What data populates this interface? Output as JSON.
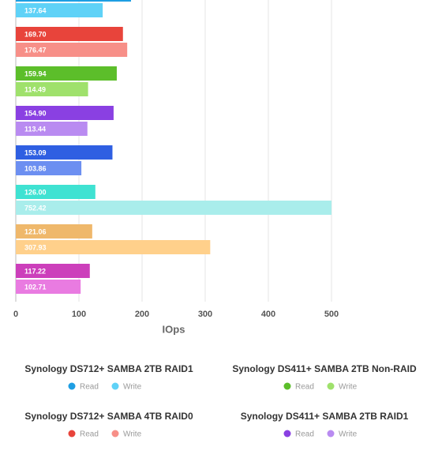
{
  "chart_data": {
    "type": "grouped-bar-horizontal",
    "categories": [
      "Read",
      "Write"
    ],
    "series": [
      {
        "name": "Synology DS712+ SAMBA 2TB RAID1",
        "colors": [
          "#1e9ee3",
          "#5fd2f7"
        ],
        "values": [
          182.5,
          137.64
        ],
        "value_labels": [
          null,
          "137.64"
        ]
      },
      {
        "name": "Synology DS712+ SAMBA 4TB RAID0",
        "colors": [
          "#e8443b",
          "#f78f88"
        ],
        "values": [
          169.7,
          176.47
        ],
        "value_labels": [
          "169.70",
          "176.47"
        ]
      },
      {
        "name": "Synology DS411+ SAMBA 2TB Non-RAID",
        "colors": [
          "#5cbe2a",
          "#9fe16c"
        ],
        "values": [
          159.94,
          114.49
        ],
        "value_labels": [
          "159.94",
          "114.49"
        ]
      },
      {
        "name": "Synology DS411+ SAMBA 2TB RAID1",
        "colors": [
          "#8a40e2",
          "#b98bf1"
        ],
        "values": [
          154.9,
          113.44
        ],
        "value_labels": [
          "154.90",
          "113.44"
        ]
      },
      {
        "name": null,
        "colors": [
          "#2f5fe2",
          "#6c8ff1"
        ],
        "values": [
          153.09,
          103.86
        ],
        "value_labels": [
          "153.09",
          "103.86"
        ]
      },
      {
        "name": null,
        "colors": [
          "#3fe2d2",
          "#a9edeb"
        ],
        "values": [
          126.0,
          752.42
        ],
        "value_labels": [
          "126.00",
          "752.42"
        ]
      },
      {
        "name": null,
        "colors": [
          "#efb86b",
          "#ffd08b"
        ],
        "values": [
          121.06,
          307.93
        ],
        "value_labels": [
          "121.06",
          "307.93"
        ]
      },
      {
        "name": null,
        "colors": [
          "#cc3fbb",
          "#e97be1"
        ],
        "values": [
          117.22,
          102.71
        ],
        "value_labels": [
          "117.22",
          "102.71"
        ]
      }
    ],
    "x_label": "IOps",
    "xlim": [
      0,
      500
    ],
    "xticks": [
      0,
      100,
      200,
      300,
      400,
      500
    ],
    "grid": true
  }
}
